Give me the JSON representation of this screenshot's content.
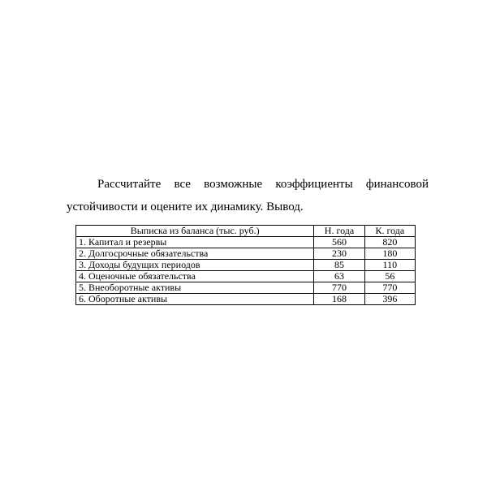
{
  "paragraph": {
    "text": "Рассчитайте все возможные коэффициенты финансовой устойчивости и оцените их динамику. Вывод."
  },
  "table": {
    "headers": {
      "label": "Выписка из баланса (тыс. руб.)",
      "start_year": "Н. года",
      "end_year": "К. года"
    },
    "rows": [
      {
        "label": "1. Капитал и резервы",
        "start": "560",
        "end": "820"
      },
      {
        "label": "2. Долгосрочные обязательства",
        "start": "230",
        "end": "180"
      },
      {
        "label": "3. Доходы будущих периодов",
        "start": "85",
        "end": "110"
      },
      {
        "label": "4. Оценочные обязательства",
        "start": "63",
        "end": "56"
      },
      {
        "label": "5. Внеоборотные активы",
        "start": "770",
        "end": "770"
      },
      {
        "label": "6. Оборотные активы",
        "start": "168",
        "end": "396"
      }
    ]
  }
}
